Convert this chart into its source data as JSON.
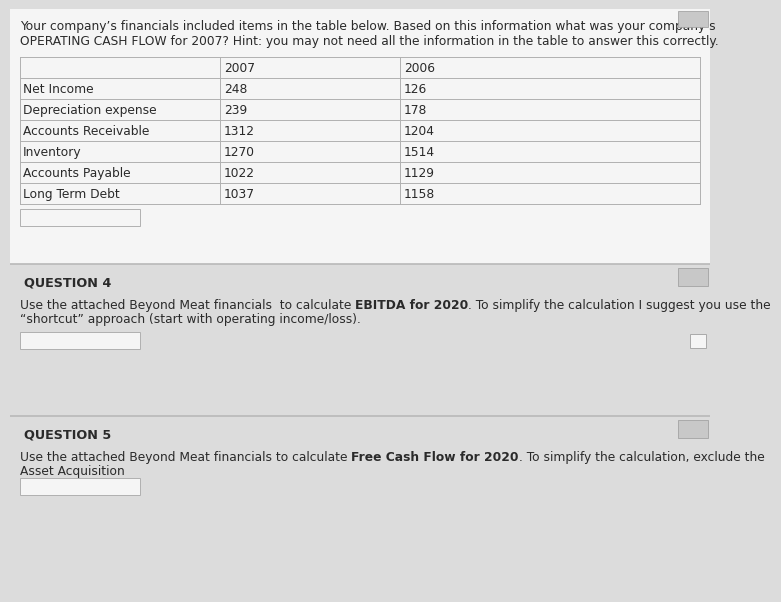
{
  "intro_line1": "Your company’s financials included items in the table below. Based on this information what was your company’s",
  "intro_line2": "OPERATING CASH FLOW for 2007? Hint: you may not need all the information in the table to answer this correctly.",
  "table_headers": [
    "",
    "2007",
    "2006"
  ],
  "table_rows": [
    [
      "Net Income",
      "248",
      "126"
    ],
    [
      "Depreciation expense",
      "239",
      "178"
    ],
    [
      "Accounts Receivable",
      "1312",
      "1204"
    ],
    [
      "Inventory",
      "1270",
      "1514"
    ],
    [
      "Accounts Payable",
      "1022",
      "1129"
    ],
    [
      "Long Term Debt",
      "1037",
      "1158"
    ]
  ],
  "q4_label": "QUESTION 4",
  "q4_pre": "Use the attached Beyond Meat financials  to calculate ",
  "q4_bold": "EBITDA for 2020",
  "q4_post": ". To simplify the calculation I suggest you use the",
  "q4_line2": "“shortcut” approach (start with operating income/loss).",
  "q5_label": "QUESTION 5",
  "q5_pre": "Use the attached Beyond Meat financials to calculate ",
  "q5_bold": "Free Cash Flow for 2020",
  "q5_post": ". To simplify the calculation, exclude the",
  "q5_line2": "Asset Acquisition",
  "bg_color": "#dcdcdc",
  "white": "#f5f5f5",
  "text_color": "#2a2a2a",
  "line_color": "#b0b0b0",
  "section_bg": "#d0d0d0",
  "corner_box_color": "#c8c8c8",
  "fontsize_intro": 8.8,
  "fontsize_table": 8.8,
  "fontsize_q_label": 9.2,
  "fontsize_q_body": 8.8
}
